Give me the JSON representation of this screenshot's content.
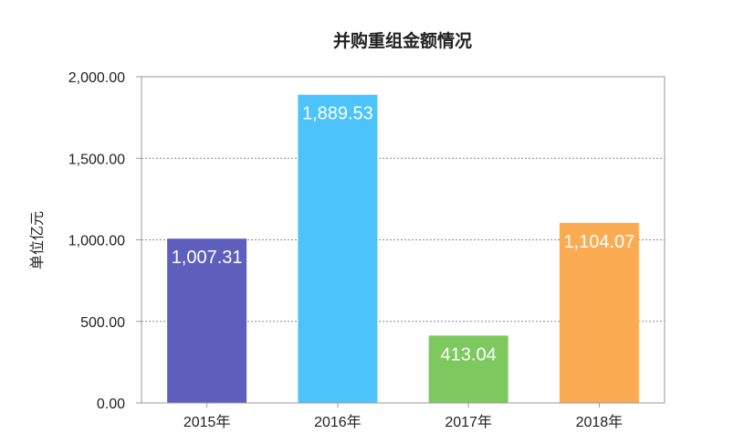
{
  "chart_data": {
    "type": "bar",
    "title": "并购重组金额情况",
    "ylabel": "单位亿元",
    "xlabel": "",
    "categories": [
      "2015年",
      "2016年",
      "2017年",
      "2018年"
    ],
    "values": [
      1007.31,
      1889.53,
      413.04,
      1104.07
    ],
    "value_labels": [
      "1,007.31",
      "1,889.53",
      "413.04",
      "1,104.07"
    ],
    "colors": [
      "#5e5fbd",
      "#4dc3fb",
      "#7dc95e",
      "#fbab51"
    ],
    "ylim": [
      0,
      2000
    ],
    "yticks": [
      0,
      500,
      1000,
      1500,
      2000
    ],
    "ytick_labels": [
      "0.00",
      "500.00",
      "1,000.00",
      "1,500.00",
      "2,000.00"
    ],
    "grid": true,
    "legend": "none"
  }
}
